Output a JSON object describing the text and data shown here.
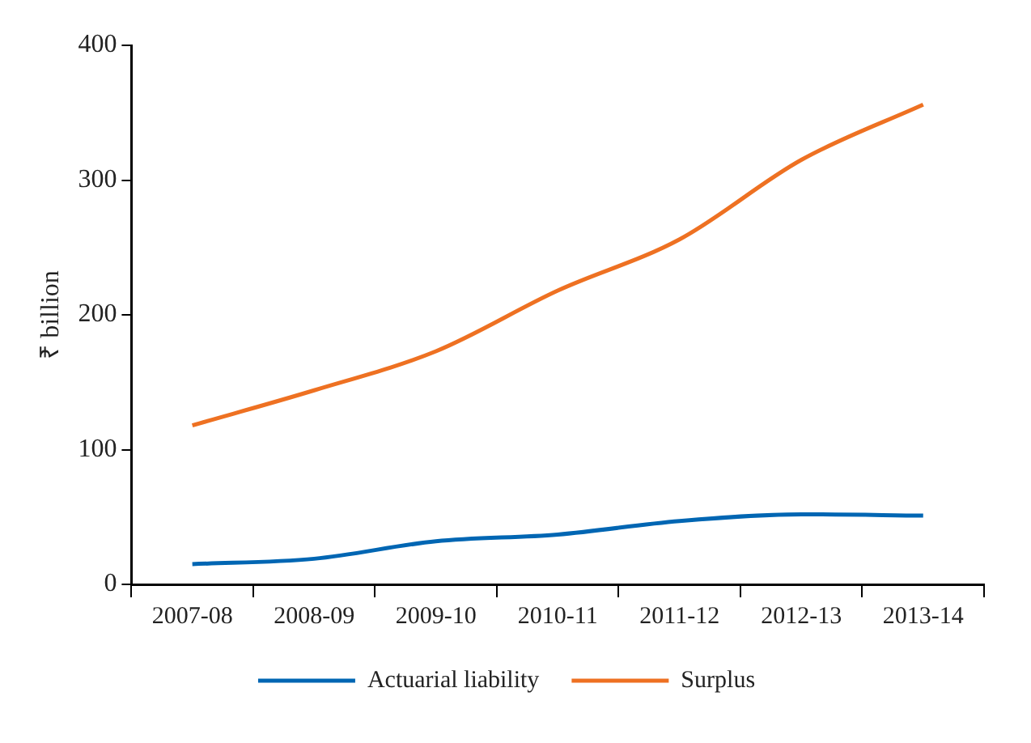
{
  "chart_data": {
    "type": "line",
    "ylabel": "₹ billion",
    "categories": [
      "2007-08",
      "2008-09",
      "2009-10",
      "2010-11",
      "2011-12",
      "2012-13",
      "2013-14"
    ],
    "series": [
      {
        "name": "Actuarial liability",
        "color": "#0066b3",
        "values": [
          15,
          19,
          32,
          37,
          47,
          52,
          51
        ]
      },
      {
        "name": "Surplus",
        "color": "#ee7122",
        "values": [
          118,
          144,
          173,
          218,
          256,
          315,
          356
        ]
      }
    ],
    "ylim": [
      0,
      400
    ],
    "yticks": [
      0,
      100,
      200,
      300,
      400
    ],
    "grid": false,
    "legend": "bottom",
    "marker": "none",
    "line_style": "solid"
  }
}
